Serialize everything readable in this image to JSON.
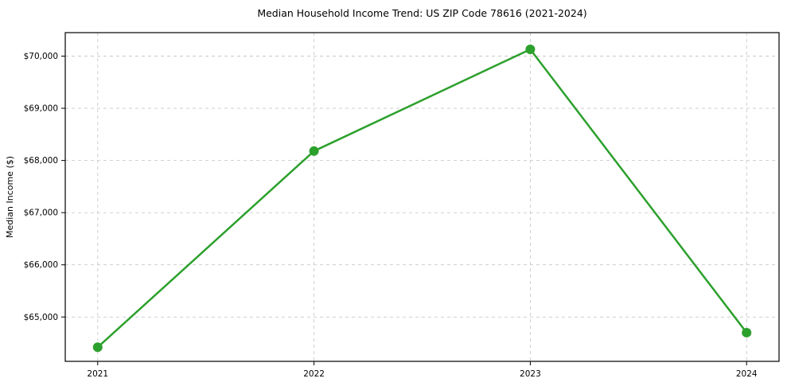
{
  "page": {
    "background_color": "#ffffff"
  },
  "chart_data": {
    "type": "line",
    "title": "Median Household Income Trend: US ZIP Code 78616 (2021-2024)",
    "xlabel": "",
    "ylabel": "Median Income ($)",
    "x": [
      2021,
      2022,
      2023,
      2024
    ],
    "x_labels": [
      "2021",
      "2022",
      "2023",
      "2024"
    ],
    "series": [
      {
        "name": "Median Household Income",
        "values": [
          64420,
          68180,
          70130,
          64700
        ],
        "color": "#2ca02c"
      }
    ],
    "xlim": [
      2020.85,
      2024.15
    ],
    "ylim": [
      64150,
      70450
    ],
    "yticks": [
      65000,
      66000,
      67000,
      68000,
      69000,
      70000
    ],
    "ytick_labels": [
      "$65,000",
      "$66,000",
      "$67,000",
      "$68,000",
      "$69,000",
      "$70,000"
    ],
    "grid": true,
    "grid_style": "dashed",
    "grid_color": "#c9c9c9",
    "legend": "none",
    "line_width": 2.5,
    "marker": "circle",
    "marker_radius": 6,
    "axes_color": "#000000",
    "text_color": "#000000"
  }
}
